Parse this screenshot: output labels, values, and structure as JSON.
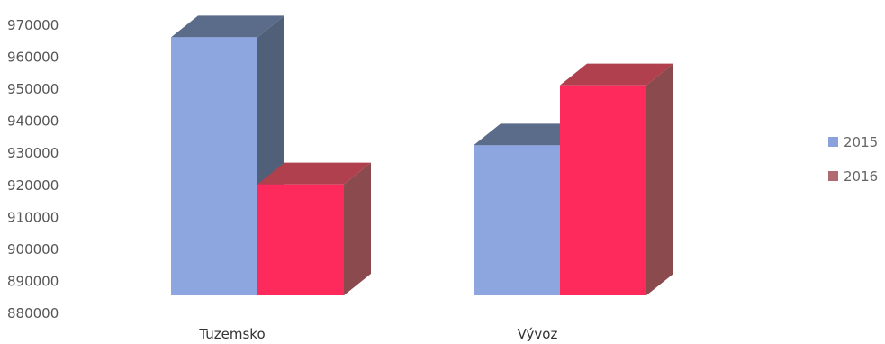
{
  "chart_data": {
    "type": "bar",
    "categories": [
      "Tuzemsko",
      "Vývoz"
    ],
    "series": [
      {
        "name": "2015",
        "values": [
          966000,
          930000
        ]
      },
      {
        "name": "2016",
        "values": [
          917000,
          950000
        ]
      }
    ],
    "ylim": [
      880000,
      970000
    ],
    "yticks": [
      "970000",
      "960000",
      "950000",
      "940000",
      "930000",
      "920000",
      "910000",
      "900000",
      "890000",
      "880000"
    ],
    "grid": false,
    "legend_position": "right",
    "style": "3d-column"
  },
  "colors": {
    "series_2015_front": "#8ea6e0",
    "series_2015_side": "#4f6078",
    "series_2015_top": "#5a6c8a",
    "series_2016_front": "#ff2a5c",
    "series_2016_side": "#8a4a4e",
    "series_2016_top": "#b0404e",
    "legend_2015": "#8aa2dc",
    "legend_2016": "#b06a72"
  }
}
